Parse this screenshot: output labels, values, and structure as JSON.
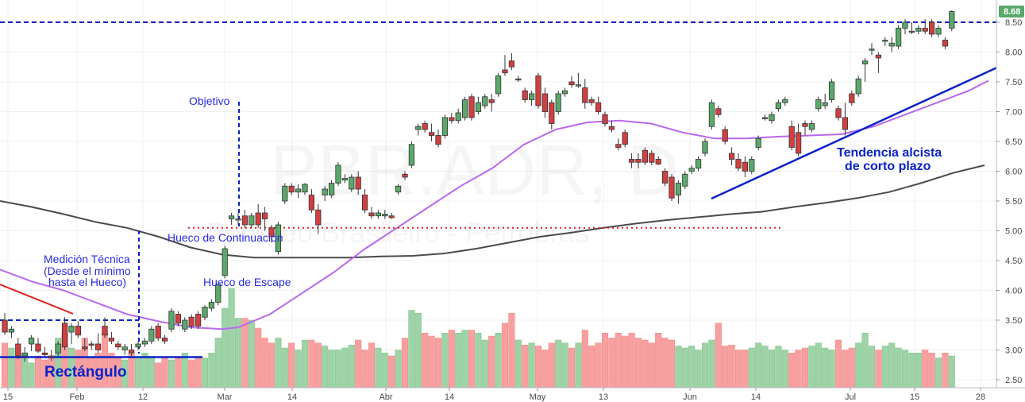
{
  "chart_data": {
    "type": "candlestick",
    "symbol": "PBR.ADR, D",
    "company": "Petróleo Brasileiro - Petrobras",
    "last_price": "8.68",
    "ylim": [
      2.4,
      8.8
    ],
    "y_ticks": [
      "2.50",
      "3.00",
      "3.50",
      "4.00",
      "4.50",
      "5.00",
      "5.50",
      "6.00",
      "6.50",
      "7.00",
      "7.50",
      "8.00",
      "8.50"
    ],
    "x_ticks": [
      "15",
      "Feb",
      "12",
      "Mar",
      "14",
      "Abr",
      "14",
      "May",
      "13",
      "Jun",
      "14",
      "Jul",
      "15",
      "28"
    ],
    "colors": {
      "up": "#5aa86a",
      "down": "#d04040",
      "vol_up": "#9dd3a6",
      "vol_down": "#f8a0a0",
      "ma_short": "#b868ee",
      "ma_long": "#4a4a4a",
      "annotation": "#2a2ae0",
      "trend": "#0a22c8",
      "red_line": "#e02020",
      "price_tag": "#5aa86a"
    },
    "annotations": {
      "objetivo": "Objetivo",
      "hueco_continuacion": "Hueco de Continuación",
      "hueco_escape": "Hueco de Escape",
      "medicion_1": "Medición Técnica",
      "medicion_2": "(Desde el mínimo",
      "medicion_3": "hasta el Hueco)",
      "rectangulo": "Rectángulo",
      "tendencia_1": "Tendencia alcista",
      "tendencia_2": "de corto plazo"
    },
    "levels": {
      "resistance": 8.5,
      "rect_top": 3.5,
      "rect_bottom": 2.88,
      "gap": 5.05
    },
    "candles": [
      {
        "o": 3.5,
        "h": 3.62,
        "l": 3.25,
        "c": 3.3
      },
      {
        "o": 3.3,
        "h": 3.4,
        "l": 3.2,
        "c": 3.35
      },
      {
        "o": 3.1,
        "h": 3.2,
        "l": 2.85,
        "c": 2.9
      },
      {
        "o": 2.9,
        "h": 3.05,
        "l": 2.8,
        "c": 2.95
      },
      {
        "o": 3.1,
        "h": 3.25,
        "l": 2.98,
        "c": 3.2
      },
      {
        "o": 3.1,
        "h": 3.2,
        "l": 2.95,
        "c": 2.98
      },
      {
        "o": 2.95,
        "h": 3.05,
        "l": 2.88,
        "c": 2.92
      },
      {
        "o": 2.9,
        "h": 3.0,
        "l": 2.82,
        "c": 2.88
      },
      {
        "o": 2.95,
        "h": 3.15,
        "l": 2.9,
        "c": 3.1
      },
      {
        "o": 3.45,
        "h": 3.55,
        "l": 3.0,
        "c": 3.05
      },
      {
        "o": 3.3,
        "h": 3.45,
        "l": 3.1,
        "c": 3.4
      },
      {
        "o": 3.4,
        "h": 3.48,
        "l": 3.2,
        "c": 3.25
      },
      {
        "o": 3.05,
        "h": 3.2,
        "l": 2.98,
        "c": 3.02
      },
      {
        "o": 3.1,
        "h": 3.15,
        "l": 3.0,
        "c": 3.08
      },
      {
        "o": 3.1,
        "h": 3.28,
        "l": 2.95,
        "c": 3.0
      },
      {
        "o": 3.4,
        "h": 3.55,
        "l": 3.2,
        "c": 3.25
      },
      {
        "o": 3.2,
        "h": 3.3,
        "l": 3.1,
        "c": 3.15
      },
      {
        "o": 3.1,
        "h": 3.15,
        "l": 3.0,
        "c": 3.05
      },
      {
        "o": 3.0,
        "h": 3.1,
        "l": 2.92,
        "c": 3.05
      },
      {
        "o": 3.0,
        "h": 3.1,
        "l": 2.9,
        "c": 2.95
      },
      {
        "o": 3.05,
        "h": 3.15,
        "l": 3.0,
        "c": 3.1
      },
      {
        "o": 3.1,
        "h": 3.2,
        "l": 3.05,
        "c": 3.15
      },
      {
        "o": 3.15,
        "h": 3.4,
        "l": 3.1,
        "c": 3.35
      },
      {
        "o": 3.4,
        "h": 3.45,
        "l": 3.15,
        "c": 3.2
      },
      {
        "o": 3.2,
        "h": 3.25,
        "l": 3.1,
        "c": 3.15
      },
      {
        "o": 3.35,
        "h": 3.7,
        "l": 3.3,
        "c": 3.65
      },
      {
        "o": 3.6,
        "h": 3.65,
        "l": 3.4,
        "c": 3.45
      },
      {
        "o": 3.35,
        "h": 3.55,
        "l": 3.3,
        "c": 3.5
      },
      {
        "o": 3.55,
        "h": 3.6,
        "l": 3.35,
        "c": 3.4
      },
      {
        "o": 3.6,
        "h": 3.65,
        "l": 3.35,
        "c": 3.4
      },
      {
        "o": 3.55,
        "h": 3.75,
        "l": 3.5,
        "c": 3.72
      },
      {
        "o": 3.7,
        "h": 3.85,
        "l": 3.65,
        "c": 3.8
      },
      {
        "o": 3.8,
        "h": 4.12,
        "l": 3.75,
        "c": 4.1
      },
      {
        "o": 4.25,
        "h": 4.75,
        "l": 4.2,
        "c": 4.7
      },
      {
        "o": 5.2,
        "h": 5.3,
        "l": 5.1,
        "c": 5.25
      },
      {
        "o": 5.2,
        "h": 5.3,
        "l": 5.1,
        "c": 5.2
      },
      {
        "o": 5.25,
        "h": 5.35,
        "l": 5.05,
        "c": 5.1
      },
      {
        "o": 5.1,
        "h": 5.3,
        "l": 5.05,
        "c": 5.25
      },
      {
        "o": 5.3,
        "h": 5.45,
        "l": 5.05,
        "c": 5.1
      },
      {
        "o": 5.3,
        "h": 5.4,
        "l": 5.0,
        "c": 5.2
      },
      {
        "o": 5.05,
        "h": 5.1,
        "l": 4.8,
        "c": 4.9
      },
      {
        "o": 4.65,
        "h": 5.15,
        "l": 4.6,
        "c": 5.1
      },
      {
        "o": 5.5,
        "h": 5.8,
        "l": 5.45,
        "c": 5.75
      },
      {
        "o": 5.75,
        "h": 5.8,
        "l": 5.6,
        "c": 5.65
      },
      {
        "o": 5.65,
        "h": 5.78,
        "l": 5.55,
        "c": 5.7
      },
      {
        "o": 5.65,
        "h": 5.8,
        "l": 5.6,
        "c": 5.78
      },
      {
        "o": 5.6,
        "h": 5.7,
        "l": 5.3,
        "c": 5.35
      },
      {
        "o": 5.35,
        "h": 5.45,
        "l": 4.95,
        "c": 5.1
      },
      {
        "o": 5.6,
        "h": 5.75,
        "l": 5.5,
        "c": 5.7
      },
      {
        "o": 5.6,
        "h": 5.85,
        "l": 5.55,
        "c": 5.8
      },
      {
        "o": 5.8,
        "h": 6.15,
        "l": 5.75,
        "c": 6.1
      },
      {
        "o": 5.85,
        "h": 5.95,
        "l": 5.8,
        "c": 5.88
      },
      {
        "o": 5.7,
        "h": 5.95,
        "l": 5.65,
        "c": 5.9
      },
      {
        "o": 5.9,
        "h": 6.0,
        "l": 5.6,
        "c": 5.7
      },
      {
        "o": 5.6,
        "h": 5.7,
        "l": 5.3,
        "c": 5.35
      },
      {
        "o": 5.3,
        "h": 5.4,
        "l": 5.2,
        "c": 5.25
      },
      {
        "o": 5.25,
        "h": 5.35,
        "l": 5.2,
        "c": 5.3
      },
      {
        "o": 5.25,
        "h": 5.35,
        "l": 5.2,
        "c": 5.28
      },
      {
        "o": 5.25,
        "h": 5.3,
        "l": 5.2,
        "c": 5.22
      },
      {
        "o": 5.65,
        "h": 5.78,
        "l": 5.6,
        "c": 5.75
      },
      {
        "o": 5.95,
        "h": 6.0,
        "l": 5.85,
        "c": 5.9
      },
      {
        "o": 6.1,
        "h": 6.5,
        "l": 6.05,
        "c": 6.45
      },
      {
        "o": 6.7,
        "h": 6.8,
        "l": 6.6,
        "c": 6.75
      },
      {
        "o": 6.8,
        "h": 6.85,
        "l": 6.65,
        "c": 6.7
      },
      {
        "o": 6.65,
        "h": 6.8,
        "l": 6.5,
        "c": 6.6
      },
      {
        "o": 6.6,
        "h": 6.7,
        "l": 6.4,
        "c": 6.45
      },
      {
        "o": 6.6,
        "h": 6.95,
        "l": 6.55,
        "c": 6.9
      },
      {
        "o": 6.9,
        "h": 6.98,
        "l": 6.8,
        "c": 6.85
      },
      {
        "o": 6.85,
        "h": 7.05,
        "l": 6.8,
        "c": 6.98
      },
      {
        "o": 6.9,
        "h": 7.25,
        "l": 6.85,
        "c": 7.2
      },
      {
        "o": 7.25,
        "h": 7.3,
        "l": 6.85,
        "c": 6.9
      },
      {
        "o": 7.0,
        "h": 7.25,
        "l": 6.95,
        "c": 7.15
      },
      {
        "o": 7.1,
        "h": 7.3,
        "l": 7.05,
        "c": 7.25
      },
      {
        "o": 7.2,
        "h": 7.3,
        "l": 7.0,
        "c": 7.15
      },
      {
        "o": 7.3,
        "h": 7.65,
        "l": 7.25,
        "c": 7.6
      },
      {
        "o": 7.7,
        "h": 7.95,
        "l": 7.6,
        "c": 7.65
      },
      {
        "o": 7.85,
        "h": 7.98,
        "l": 7.7,
        "c": 7.75
      },
      {
        "o": 7.55,
        "h": 7.6,
        "l": 7.5,
        "c": 7.55
      },
      {
        "o": 7.35,
        "h": 7.4,
        "l": 7.15,
        "c": 7.2
      },
      {
        "o": 7.2,
        "h": 7.35,
        "l": 7.1,
        "c": 7.3
      },
      {
        "o": 7.6,
        "h": 7.65,
        "l": 7.05,
        "c": 7.1
      },
      {
        "o": 7.3,
        "h": 7.4,
        "l": 6.9,
        "c": 7.0
      },
      {
        "o": 7.15,
        "h": 7.2,
        "l": 6.7,
        "c": 6.8
      },
      {
        "o": 7.0,
        "h": 7.35,
        "l": 6.95,
        "c": 7.3
      },
      {
        "o": 7.3,
        "h": 7.4,
        "l": 7.25,
        "c": 7.35
      },
      {
        "o": 7.5,
        "h": 7.6,
        "l": 7.4,
        "c": 7.45
      },
      {
        "o": 7.45,
        "h": 7.65,
        "l": 7.4,
        "c": 7.45
      },
      {
        "o": 7.4,
        "h": 7.55,
        "l": 7.05,
        "c": 7.15
      },
      {
        "o": 7.2,
        "h": 7.25,
        "l": 7.1,
        "c": 7.15
      },
      {
        "o": 7.15,
        "h": 7.25,
        "l": 6.95,
        "c": 7.0
      },
      {
        "o": 6.95,
        "h": 7.0,
        "l": 6.75,
        "c": 6.8
      },
      {
        "o": 6.75,
        "h": 6.85,
        "l": 6.65,
        "c": 6.7
      },
      {
        "o": 6.45,
        "h": 6.55,
        "l": 6.35,
        "c": 6.4
      },
      {
        "o": 6.65,
        "h": 6.7,
        "l": 6.4,
        "c": 6.45
      },
      {
        "o": 6.2,
        "h": 6.3,
        "l": 6.05,
        "c": 6.15
      },
      {
        "o": 6.2,
        "h": 6.3,
        "l": 6.05,
        "c": 6.15
      },
      {
        "o": 6.35,
        "h": 6.4,
        "l": 6.1,
        "c": 6.15
      },
      {
        "o": 6.3,
        "h": 6.35,
        "l": 6.1,
        "c": 6.15
      },
      {
        "o": 6.2,
        "h": 6.25,
        "l": 6.1,
        "c": 6.12
      },
      {
        "o": 6.0,
        "h": 6.05,
        "l": 5.75,
        "c": 5.8
      },
      {
        "o": 5.9,
        "h": 5.95,
        "l": 5.5,
        "c": 5.55
      },
      {
        "o": 5.6,
        "h": 5.85,
        "l": 5.45,
        "c": 5.8
      },
      {
        "o": 5.75,
        "h": 6.0,
        "l": 5.7,
        "c": 5.95
      },
      {
        "o": 6.0,
        "h": 6.1,
        "l": 5.95,
        "c": 6.05
      },
      {
        "o": 6.05,
        "h": 6.25,
        "l": 6.0,
        "c": 6.2
      },
      {
        "o": 6.3,
        "h": 6.55,
        "l": 6.25,
        "c": 6.5
      },
      {
        "o": 6.75,
        "h": 7.2,
        "l": 6.7,
        "c": 7.15
      },
      {
        "o": 7.05,
        "h": 7.1,
        "l": 6.9,
        "c": 6.95
      },
      {
        "o": 6.7,
        "h": 6.75,
        "l": 6.45,
        "c": 6.5
      },
      {
        "o": 6.3,
        "h": 6.4,
        "l": 6.1,
        "c": 6.2
      },
      {
        "o": 6.2,
        "h": 6.3,
        "l": 6.0,
        "c": 6.05
      },
      {
        "o": 6.15,
        "h": 6.25,
        "l": 5.9,
        "c": 6.0
      },
      {
        "o": 6.0,
        "h": 6.25,
        "l": 5.95,
        "c": 6.2
      },
      {
        "o": 6.4,
        "h": 6.6,
        "l": 6.35,
        "c": 6.55
      },
      {
        "o": 6.9,
        "h": 6.95,
        "l": 6.85,
        "c": 6.9
      },
      {
        "o": 6.85,
        "h": 7.0,
        "l": 6.8,
        "c": 6.95
      },
      {
        "o": 7.05,
        "h": 7.2,
        "l": 7.0,
        "c": 7.15
      },
      {
        "o": 7.15,
        "h": 7.25,
        "l": 7.1,
        "c": 7.2
      },
      {
        "o": 6.75,
        "h": 6.85,
        "l": 6.35,
        "c": 6.4
      },
      {
        "o": 6.65,
        "h": 6.8,
        "l": 6.25,
        "c": 6.3
      },
      {
        "o": 6.8,
        "h": 6.85,
        "l": 6.6,
        "c": 6.75
      },
      {
        "o": 6.7,
        "h": 6.85,
        "l": 6.65,
        "c": 6.8
      },
      {
        "o": 7.05,
        "h": 7.25,
        "l": 7.0,
        "c": 7.2
      },
      {
        "o": 7.1,
        "h": 7.3,
        "l": 7.05,
        "c": 7.15
      },
      {
        "o": 7.2,
        "h": 7.55,
        "l": 7.15,
        "c": 7.5
      },
      {
        "o": 7.05,
        "h": 7.1,
        "l": 6.85,
        "c": 6.9
      },
      {
        "o": 6.9,
        "h": 7.15,
        "l": 6.6,
        "c": 6.7
      },
      {
        "o": 7.3,
        "h": 7.35,
        "l": 7.1,
        "c": 7.15
      },
      {
        "o": 7.3,
        "h": 7.6,
        "l": 7.25,
        "c": 7.55
      },
      {
        "o": 7.8,
        "h": 7.9,
        "l": 7.5,
        "c": 7.85
      },
      {
        "o": 8.05,
        "h": 8.15,
        "l": 7.95,
        "c": 8.05
      },
      {
        "o": 7.95,
        "h": 8.0,
        "l": 7.65,
        "c": 7.9
      },
      {
        "o": 8.2,
        "h": 8.25,
        "l": 8.1,
        "c": 8.2
      },
      {
        "o": 8.1,
        "h": 8.25,
        "l": 8.0,
        "c": 8.15
      },
      {
        "o": 8.1,
        "h": 8.45,
        "l": 8.05,
        "c": 8.4
      },
      {
        "o": 8.4,
        "h": 8.55,
        "l": 8.3,
        "c": 8.5
      },
      {
        "o": 8.35,
        "h": 8.5,
        "l": 8.3,
        "c": 8.35
      },
      {
        "o": 8.35,
        "h": 8.45,
        "l": 8.3,
        "c": 8.4
      },
      {
        "o": 8.4,
        "h": 8.55,
        "l": 8.3,
        "c": 8.35
      },
      {
        "o": 8.5,
        "h": 8.55,
        "l": 8.25,
        "c": 8.3
      },
      {
        "o": 8.3,
        "h": 8.45,
        "l": 8.25,
        "c": 8.4
      },
      {
        "o": 8.2,
        "h": 8.25,
        "l": 8.05,
        "c": 8.1
      },
      {
        "o": 8.4,
        "h": 8.7,
        "l": 8.35,
        "c": 8.68
      }
    ],
    "volume": [
      0.45,
      0.4,
      0.3,
      0.35,
      0.25,
      0.32,
      0.28,
      0.3,
      0.5,
      0.55,
      0.4,
      0.38,
      0.5,
      0.3,
      0.35,
      0.55,
      0.35,
      0.3,
      0.28,
      0.35,
      0.3,
      0.35,
      0.3,
      0.25,
      0.3,
      0.28,
      0.3,
      0.35,
      0.28,
      0.3,
      0.3,
      0.35,
      0.5,
      0.8,
      1.0,
      0.7,
      0.7,
      0.68,
      0.6,
      0.5,
      0.45,
      0.5,
      0.4,
      0.45,
      0.38,
      0.48,
      0.48,
      0.45,
      0.42,
      0.38,
      0.38,
      0.4,
      0.43,
      0.48,
      0.38,
      0.45,
      0.4,
      0.35,
      0.32,
      0.38,
      0.5,
      0.78,
      0.75,
      0.55,
      0.52,
      0.5,
      0.55,
      0.58,
      0.55,
      0.58,
      0.58,
      0.55,
      0.48,
      0.52,
      0.55,
      0.65,
      0.75,
      0.48,
      0.43,
      0.45,
      0.42,
      0.38,
      0.45,
      0.48,
      0.45,
      0.4,
      0.45,
      0.58,
      0.42,
      0.45,
      0.55,
      0.5,
      0.55,
      0.52,
      0.55,
      0.5,
      0.48,
      0.45,
      0.55,
      0.5,
      0.48,
      0.42,
      0.4,
      0.42,
      0.38,
      0.45,
      0.48,
      0.65,
      0.42,
      0.43,
      0.38,
      0.38,
      0.4,
      0.45,
      0.42,
      0.38,
      0.42,
      0.38,
      0.35,
      0.38,
      0.4,
      0.42,
      0.45,
      0.4,
      0.38,
      0.48,
      0.38,
      0.4,
      0.45,
      0.55,
      0.42,
      0.38,
      0.42,
      0.45,
      0.4,
      0.38,
      0.35,
      0.35,
      0.38,
      0.35,
      0.3,
      0.35,
      0.32,
      0.4,
      0.45
    ],
    "ma_long": [
      [
        0,
        5.5
      ],
      [
        40,
        5.4
      ],
      [
        80,
        5.28
      ],
      [
        120,
        5.15
      ],
      [
        160,
        5.05
      ],
      [
        200,
        4.9
      ],
      [
        240,
        4.72
      ],
      [
        280,
        4.6
      ],
      [
        320,
        4.55
      ],
      [
        360,
        4.55
      ],
      [
        400,
        4.55
      ],
      [
        440,
        4.55
      ],
      [
        480,
        4.57
      ],
      [
        520,
        4.58
      ],
      [
        560,
        4.62
      ],
      [
        600,
        4.7
      ],
      [
        640,
        4.8
      ],
      [
        680,
        4.9
      ],
      [
        720,
        4.97
      ],
      [
        760,
        5.05
      ],
      [
        800,
        5.12
      ],
      [
        840,
        5.18
      ],
      [
        880,
        5.23
      ],
      [
        920,
        5.28
      ],
      [
        960,
        5.32
      ],
      [
        1000,
        5.4
      ],
      [
        1040,
        5.47
      ],
      [
        1080,
        5.55
      ],
      [
        1120,
        5.65
      ],
      [
        1160,
        5.8
      ],
      [
        1200,
        5.97
      ],
      [
        1240,
        6.1
      ]
    ],
    "ma_short": [
      [
        0,
        4.35
      ],
      [
        40,
        4.15
      ],
      [
        80,
        4.0
      ],
      [
        120,
        3.8
      ],
      [
        160,
        3.6
      ],
      [
        200,
        3.48
      ],
      [
        240,
        3.38
      ],
      [
        280,
        3.35
      ],
      [
        300,
        3.38
      ],
      [
        340,
        3.6
      ],
      [
        380,
        3.95
      ],
      [
        420,
        4.3
      ],
      [
        460,
        4.7
      ],
      [
        500,
        5.05
      ],
      [
        540,
        5.4
      ],
      [
        580,
        5.75
      ],
      [
        620,
        6.05
      ],
      [
        660,
        6.45
      ],
      [
        700,
        6.7
      ],
      [
        740,
        6.82
      ],
      [
        780,
        6.85
      ],
      [
        820,
        6.8
      ],
      [
        860,
        6.65
      ],
      [
        900,
        6.55
      ],
      [
        940,
        6.55
      ],
      [
        980,
        6.58
      ],
      [
        1020,
        6.6
      ],
      [
        1060,
        6.62
      ],
      [
        1100,
        6.75
      ],
      [
        1140,
        6.95
      ],
      [
        1180,
        7.15
      ],
      [
        1220,
        7.35
      ],
      [
        1245,
        7.52
      ]
    ]
  }
}
